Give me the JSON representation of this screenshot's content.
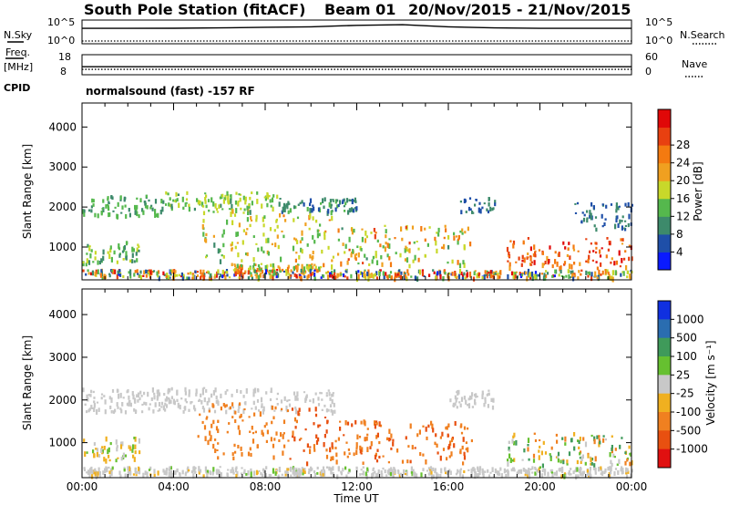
{
  "chart_data": [
    {
      "type": "line",
      "panel": "noise-panel",
      "title": "South Pole Station (fitACF)",
      "beam": "Beam 01",
      "date_range": "20/Nov/2015 - 21/Nov/2015",
      "left_label": "N.Sky",
      "right_label": "N.Search",
      "left_ticks": [
        "10^5",
        "10^0"
      ],
      "right_ticks": [
        "10^5",
        "10^0"
      ],
      "series": [
        {
          "name": "N.Sky",
          "style": "solid",
          "x": [
            0,
            2,
            4,
            6,
            8,
            10,
            12,
            14,
            16,
            18,
            20,
            22,
            24
          ],
          "values": [
            3000,
            3000,
            3200,
            4000,
            6000,
            8000,
            20000,
            30000,
            8000,
            4000,
            3000,
            3000,
            3000
          ]
        },
        {
          "name": "N.Search",
          "style": "dotted",
          "x": [
            0,
            4,
            8,
            12,
            16,
            20,
            24
          ],
          "values": [
            1,
            1,
            1,
            1,
            1,
            1,
            1
          ]
        }
      ]
    },
    {
      "type": "line",
      "panel": "freq-panel",
      "left_label": "Freq.",
      "left_units": "[MHz]",
      "cpid_label": "CPID",
      "right_label": "Nave",
      "left_ticks": [
        "18",
        "8"
      ],
      "right_ticks": [
        "60",
        "0"
      ],
      "mode_label": "normalsound (fast) -157 RF",
      "series": [
        {
          "name": "Freq.",
          "style": "solid",
          "x": [
            0,
            24
          ],
          "values": [
            12,
            12
          ]
        },
        {
          "name": "Nave",
          "style": "dotted",
          "x": [
            0,
            24
          ],
          "values": [
            16,
            16
          ]
        }
      ]
    },
    {
      "type": "heatmap",
      "panel": "power-panel",
      "ylabel": "Slant Range [km]",
      "yticks": [
        1000,
        2000,
        3000,
        4000
      ],
      "ylim": [
        180,
        4600
      ],
      "xlim": [
        0,
        24
      ],
      "colorbar_label": "Power [dB]",
      "colorbar_ticks": [
        "4",
        "8",
        "12",
        "16",
        "20",
        "24",
        "28"
      ],
      "colorbar_colors": [
        "#0a1aff",
        "#1f4fa8",
        "#3d8a6b",
        "#55b84d",
        "#c8d82a",
        "#f0a020",
        "#f47a10",
        "#e84010",
        "#e00808"
      ],
      "regions": [
        {
          "t0": 0.0,
          "t1": 3.5,
          "r0": 1750,
          "r1": 2250,
          "v0": 8,
          "v1": 14
        },
        {
          "t0": 3.5,
          "t1": 8.5,
          "r0": 1900,
          "r1": 2350,
          "v0": 10,
          "v1": 18
        },
        {
          "t0": 8.5,
          "t1": 12.0,
          "r0": 1850,
          "r1": 2200,
          "v0": 6,
          "v1": 12
        },
        {
          "t0": 16.5,
          "t1": 18.0,
          "r0": 1800,
          "r1": 2200,
          "v0": 4,
          "v1": 10
        },
        {
          "t0": 21.5,
          "t1": 24.0,
          "r0": 1400,
          "r1": 2100,
          "v0": 4,
          "v1": 10
        },
        {
          "t0": 0.0,
          "t1": 2.5,
          "r0": 550,
          "r1": 1100,
          "v0": 8,
          "v1": 16
        },
        {
          "t0": 5.0,
          "t1": 8.0,
          "r0": 600,
          "r1": 1900,
          "v0": 10,
          "v1": 20
        },
        {
          "t0": 8.0,
          "t1": 11.0,
          "r0": 500,
          "r1": 1800,
          "v0": 12,
          "v1": 22
        },
        {
          "t0": 11.0,
          "t1": 17.0,
          "r0": 500,
          "r1": 1500,
          "v0": 10,
          "v1": 26
        },
        {
          "t0": 18.5,
          "t1": 24.0,
          "r0": 450,
          "r1": 1200,
          "v0": 20,
          "v1": 30
        },
        {
          "t0": 6.5,
          "t1": 10.5,
          "r0": 350,
          "r1": 550,
          "v0": 12,
          "v1": 24
        },
        {
          "t0": 0.0,
          "t1": 24.0,
          "r0": 200,
          "r1": 400,
          "v0": 2,
          "v1": 30
        }
      ]
    },
    {
      "type": "heatmap",
      "panel": "velocity-panel",
      "ylabel": "Slant Range [km]",
      "yticks": [
        1000,
        2000,
        3000,
        4000
      ],
      "ylim": [
        180,
        4600
      ],
      "xlim": [
        0,
        24
      ],
      "xticks": [
        "00:00",
        "04:00",
        "08:00",
        "12:00",
        "16:00",
        "20:00",
        "00:00"
      ],
      "xlabel": "Time UT",
      "colorbar_label": "Velocity [m s⁻¹]",
      "colorbar_ticks": [
        "1000",
        "500",
        "100",
        "25",
        "-25",
        "-100",
        "-500",
        "-1000"
      ],
      "colorbar_colors": [
        "#1030e0",
        "#2a6db0",
        "#3f9a5a",
        "#66c030",
        "#c8c8c8",
        "#f0b020",
        "#f08020",
        "#e85010",
        "#e01010"
      ],
      "regions": [
        {
          "t0": 0.0,
          "t1": 11.0,
          "r0": 1700,
          "r1": 2250,
          "v0": -20,
          "v1": 20
        },
        {
          "t0": 16.0,
          "t1": 18.0,
          "r0": 1800,
          "r1": 2200,
          "v0": -20,
          "v1": 20
        },
        {
          "t0": 0.0,
          "t1": 2.5,
          "r0": 550,
          "r1": 1100,
          "v0": -100,
          "v1": 60
        },
        {
          "t0": 5.0,
          "t1": 9.0,
          "r0": 600,
          "r1": 1900,
          "v0": -500,
          "v1": -100
        },
        {
          "t0": 9.0,
          "t1": 11.0,
          "r0": 500,
          "r1": 1800,
          "v0": -1000,
          "v1": -300
        },
        {
          "t0": 11.0,
          "t1": 17.0,
          "r0": 500,
          "r1": 1500,
          "v0": -700,
          "v1": -100
        },
        {
          "t0": 18.5,
          "t1": 24.0,
          "r0": 450,
          "r1": 1200,
          "v0": -200,
          "v1": 200
        },
        {
          "t0": 0.0,
          "t1": 24.0,
          "r0": 200,
          "r1": 400,
          "v0": -30,
          "v1": 30
        }
      ]
    }
  ]
}
